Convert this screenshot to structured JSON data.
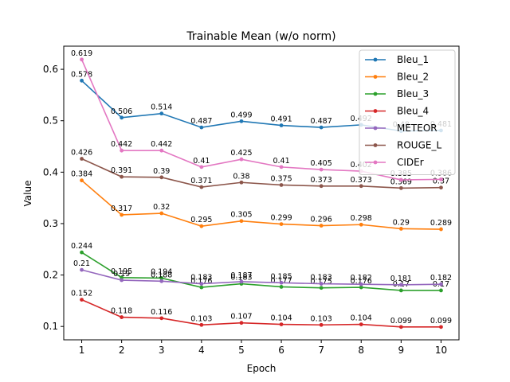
{
  "chart_data": {
    "type": "line",
    "title": "Trainable Mean (w/o norm)",
    "xlabel": "Epoch",
    "ylabel": "Value",
    "x": [
      1,
      2,
      3,
      4,
      5,
      6,
      7,
      8,
      9,
      10
    ],
    "xticks": [
      "1",
      "2",
      "3",
      "4",
      "5",
      "6",
      "7",
      "8",
      "9",
      "10"
    ],
    "yticks": [
      "0.1",
      "0.2",
      "0.3",
      "0.4",
      "0.5",
      "0.6"
    ],
    "xlim": [
      0.55,
      10.45
    ],
    "ylim": [
      0.074,
      0.645
    ],
    "grid": false,
    "legend_position": "top-right",
    "series": [
      {
        "name": "Bleu_1",
        "color": "#1f77b4",
        "values": [
          0.578,
          0.506,
          0.514,
          0.487,
          0.499,
          0.491,
          0.487,
          0.492,
          0.48,
          0.481
        ],
        "labels": [
          "0.578",
          "0.506",
          "0.514",
          "0.487",
          "0.499",
          "0.491",
          "0.487",
          "0.492",
          "0.48",
          "0.481"
        ]
      },
      {
        "name": "Bleu_2",
        "color": "#ff7f0e",
        "values": [
          0.384,
          0.317,
          0.32,
          0.295,
          0.305,
          0.299,
          0.296,
          0.298,
          0.29,
          0.289
        ],
        "labels": [
          "0.384",
          "0.317",
          "0.32",
          "0.295",
          "0.305",
          "0.299",
          "0.296",
          "0.298",
          "0.29",
          "0.289"
        ]
      },
      {
        "name": "Bleu_3",
        "color": "#2ca02c",
        "values": [
          0.244,
          0.195,
          0.194,
          0.176,
          0.183,
          0.177,
          0.175,
          0.176,
          0.17,
          0.17
        ],
        "labels": [
          "0.244",
          "0.195",
          "0.194",
          "0.176",
          "0.183",
          "0.177",
          "0.175",
          "0.176",
          "0.17",
          "0.17"
        ]
      },
      {
        "name": "Bleu_4",
        "color": "#d62728",
        "values": [
          0.152,
          0.118,
          0.116,
          0.103,
          0.107,
          0.104,
          0.103,
          0.104,
          0.099,
          0.099
        ],
        "labels": [
          "0.152",
          "0.118",
          "0.116",
          "0.103",
          "0.107",
          "0.104",
          "0.103",
          "0.104",
          "0.099",
          "0.099"
        ]
      },
      {
        "name": "METEOR",
        "color": "#9467bd",
        "values": [
          0.21,
          0.19,
          0.188,
          0.183,
          0.187,
          0.185,
          0.183,
          0.182,
          0.181,
          0.182
        ],
        "labels": [
          "0.21",
          "0.19",
          "0.188",
          "0.183",
          "0.187",
          "0.185",
          "0.183",
          "0.182",
          "0.181",
          "0.182"
        ]
      },
      {
        "name": "ROUGE_L",
        "color": "#8c564b",
        "values": [
          0.426,
          0.391,
          0.39,
          0.371,
          0.38,
          0.375,
          0.373,
          0.373,
          0.369,
          0.37
        ],
        "labels": [
          "0.426",
          "0.391",
          "0.39",
          "0.371",
          "0.38",
          "0.375",
          "0.373",
          "0.373",
          "0.369",
          "0.37"
        ]
      },
      {
        "name": "CIDEr",
        "color": "#e377c2",
        "values": [
          0.619,
          0.442,
          0.442,
          0.41,
          0.425,
          0.41,
          0.405,
          0.402,
          0.385,
          0.386
        ],
        "labels": [
          "0.619",
          "0.442",
          "0.442",
          "0.41",
          "0.425",
          "0.41",
          "0.405",
          "0.402",
          "0.385",
          "0.386"
        ]
      }
    ]
  }
}
